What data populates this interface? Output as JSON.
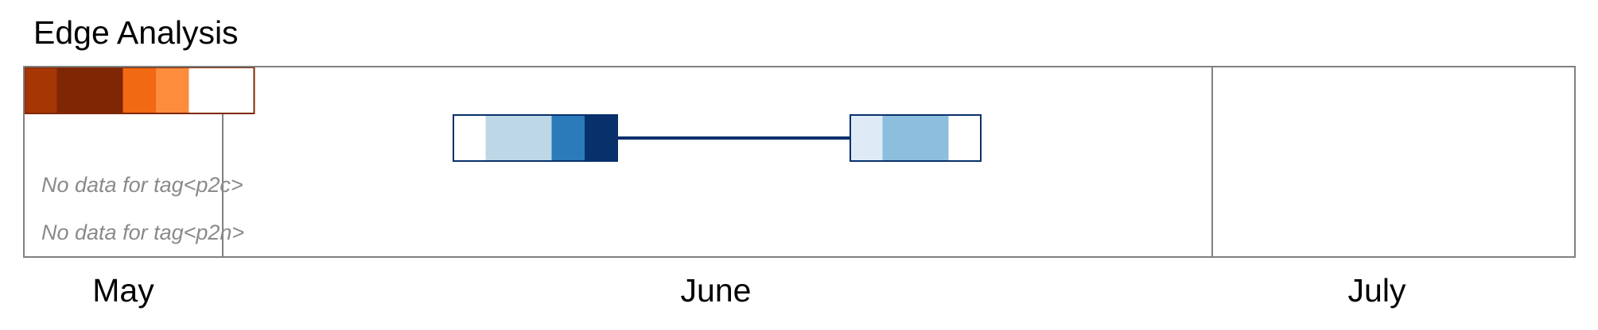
{
  "title": "Edge Analysis",
  "chart_data": {
    "type": "heatmap",
    "title": "Edge Analysis",
    "x_axis": {
      "type": "time",
      "months": [
        "May",
        "June",
        "July"
      ]
    },
    "rows": [
      {
        "tag": "",
        "color_scheme": "oranges",
        "blocks": [
          {
            "start": "2024-05-01",
            "cells": [
              "#a63603",
              "#7f2704",
              "#7f2704",
              "#f16913",
              "#fd8d3c",
              "#ffffff",
              "#ffffff"
            ],
            "border": "#7f2704"
          }
        ]
      },
      {
        "tag": "",
        "color_scheme": "blues",
        "blocks": [
          {
            "start": "2024-06-08",
            "cells": [
              "#ffffff",
              "#bdd7e7",
              "#bdd7e7",
              "#2b7bba",
              "#08306b"
            ],
            "border": "#08306b"
          },
          {
            "start": "2024-06-20",
            "cells": [
              "#deebf7",
              "#8cbfdd",
              "#8cbfdd",
              "#ffffff"
            ],
            "border": "#08306b"
          }
        ],
        "connector_color": "#08306b"
      },
      {
        "tag": "p2c",
        "no_data_text": "No data for tag<p2c>"
      },
      {
        "tag": "p2n",
        "no_data_text": "No data for tag<p2n>"
      }
    ],
    "frame_color": "#808080",
    "grid": false
  }
}
